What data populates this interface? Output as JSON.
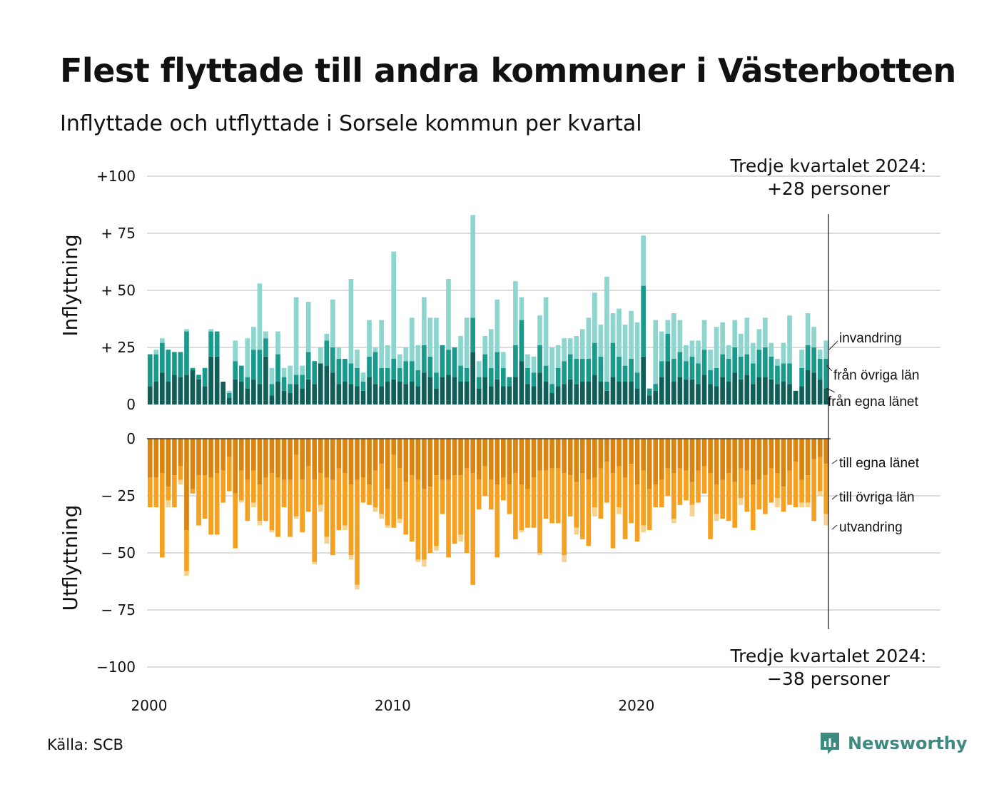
{
  "title": "Flest flyttade till andra kommuner i Västerbotten",
  "subtitle": "Inflyttade och utflyttade i Sorsele kommun per kvartal",
  "source": "Källa: SCB",
  "brand": "Newsworthy",
  "colors": {
    "in_lan": "#0f5f58",
    "in_ovriga": "#1a9a8c",
    "in_invandring": "#8dd6cf",
    "out_lan": "#d98510",
    "out_ovriga": "#f5a01e",
    "out_utvandring": "#f7d190",
    "brand": "#3d8a80"
  },
  "callouts": {
    "top_line1": "Tredje kvartalet 2024:",
    "top_line2": "+28 personer",
    "bottom_line1": "Tredje kvartalet 2024:",
    "bottom_line2": "−38 personer"
  },
  "chart_data": {
    "type": "bar",
    "stacked": true,
    "x_start": "2000-Q1",
    "x_ticks": [
      "2000",
      "2010",
      "2020"
    ],
    "grid": true,
    "panels": [
      {
        "name": "inflyttning",
        "ylabel": "Inflyttning",
        "ylim": [
          0,
          100
        ],
        "yticks": [
          "0",
          "+ 25",
          "+ 50",
          "+ 75",
          "+100"
        ],
        "series_labels": [
          "från egna länet",
          "från övriga län",
          "invandring"
        ],
        "series": [
          {
            "name": "från egna länet",
            "values": [
              8,
              10,
              14,
              10,
              13,
              12,
              13,
              15,
              11,
              8,
              21,
              21,
              10,
              3,
              11,
              10,
              7,
              11,
              9,
              21,
              4,
              10,
              6,
              5,
              9,
              7,
              11,
              9,
              18,
              17,
              14,
              9,
              10,
              9,
              8,
              6,
              12,
              9,
              8,
              10,
              11,
              10,
              9,
              10,
              8,
              14,
              12,
              7,
              12,
              13,
              12,
              10,
              10,
              23,
              7,
              12,
              8,
              11,
              8,
              8,
              12,
              19,
              9,
              8,
              14,
              10,
              5,
              8,
              9,
              11,
              9,
              10,
              10,
              13,
              10,
              6,
              12,
              10,
              10,
              10,
              7,
              21,
              4,
              6,
              12,
              19,
              10,
              12,
              11,
              11,
              9,
              13,
              9,
              8,
              12,
              10,
              14,
              11,
              13,
              9,
              12,
              12,
              11,
              9,
              10,
              9,
              6,
              8,
              15,
              14,
              11,
              7
            ]
          },
          {
            "name": "från övriga län",
            "values": [
              14,
              12,
              13,
              14,
              10,
              11,
              19,
              1,
              2,
              8,
              11,
              11,
              0,
              2,
              8,
              7,
              5,
              13,
              15,
              8,
              5,
              12,
              6,
              4,
              4,
              6,
              12,
              10,
              0,
              11,
              11,
              11,
              10,
              9,
              8,
              4,
              9,
              14,
              8,
              6,
              9,
              6,
              10,
              9,
              7,
              12,
              9,
              7,
              14,
              11,
              13,
              7,
              6,
              15,
              5,
              10,
              8,
              12,
              8,
              4,
              14,
              18,
              7,
              6,
              12,
              7,
              4,
              8,
              10,
              11,
              11,
              10,
              10,
              14,
              11,
              4,
              15,
              11,
              7,
              10,
              7,
              31,
              3,
              3,
              7,
              12,
              10,
              11,
              8,
              10,
              9,
              11,
              6,
              8,
              10,
              10,
              11,
              10,
              9,
              9,
              12,
              13,
              10,
              8,
              8,
              9,
              0,
              8,
              11,
              11,
              9,
              13
            ]
          },
          {
            "name": "invandring",
            "values": [
              0,
              2,
              2,
              0,
              0,
              0,
              1,
              0,
              0,
              0,
              1,
              0,
              0,
              1,
              9,
              0,
              17,
              10,
              29,
              3,
              7,
              10,
              4,
              8,
              34,
              4,
              22,
              0,
              7,
              3,
              21,
              5,
              0,
              37,
              8,
              4,
              16,
              2,
              21,
              10,
              47,
              6,
              6,
              19,
              11,
              21,
              17,
              24,
              0,
              31,
              0,
              13,
              22,
              45,
              7,
              8,
              17,
              23,
              7,
              0,
              28,
              10,
              6,
              7,
              13,
              30,
              16,
              10,
              10,
              7,
              10,
              13,
              18,
              22,
              14,
              46,
              13,
              21,
              18,
              21,
              22,
              22,
              0,
              28,
              13,
              6,
              20,
              14,
              7,
              7,
              10,
              13,
              9,
              18,
              14,
              6,
              12,
              10,
              16,
              9,
              9,
              13,
              6,
              3,
              9,
              21,
              0,
              8,
              14,
              9,
              4,
              8
            ]
          }
        ]
      },
      {
        "name": "utflyttning",
        "ylabel": "Utflyttning",
        "ylim": [
          -100,
          0
        ],
        "yticks": [
          "0",
          "− 25",
          "− 50",
          "− 75",
          "−100"
        ],
        "series_labels": [
          "till egna länet",
          "till övriga län",
          "utvandring"
        ],
        "series": [
          {
            "name": "till egna länet",
            "values": [
              -17,
              -17,
              -15,
              -21,
              -16,
              -12,
              -40,
              -22,
              -16,
              -16,
              -17,
              -15,
              -14,
              -8,
              -24,
              -14,
              -18,
              -14,
              -20,
              -17,
              -15,
              -17,
              -18,
              -18,
              -7,
              -18,
              -12,
              -18,
              -15,
              -17,
              -18,
              -13,
              -15,
              -20,
              -18,
              -17,
              -20,
              -14,
              -11,
              -22,
              -7,
              -13,
              -19,
              -16,
              -18,
              -22,
              -21,
              -16,
              -18,
              -18,
              -16,
              -16,
              -13,
              -15,
              -18,
              -12,
              -18,
              -20,
              -17,
              -20,
              -15,
              -20,
              -22,
              -17,
              -14,
              -14,
              -13,
              -13,
              -15,
              -16,
              -19,
              -15,
              -18,
              -17,
              -13,
              -10,
              -15,
              -12,
              -17,
              -11,
              -20,
              -14,
              -22,
              -20,
              -18,
              -13,
              -15,
              -13,
              -14,
              -19,
              -14,
              -12,
              -15,
              -20,
              -18,
              -15,
              -19,
              -13,
              -14,
              -20,
              -18,
              -16,
              -13,
              -15,
              -21,
              -14,
              -10,
              -18,
              -16,
              -9,
              -8,
              -11
            ]
          },
          {
            "name": "till övriga län",
            "values": [
              -13,
              -13,
              -37,
              -6,
              -14,
              -6,
              -18,
              -2,
              -22,
              -19,
              -25,
              -27,
              -14,
              -15,
              -24,
              -13,
              -18,
              -14,
              -16,
              -19,
              -25,
              -26,
              -12,
              -25,
              -27,
              -23,
              -20,
              -36,
              -14,
              -26,
              -33,
              -27,
              -23,
              -31,
              -46,
              -11,
              -9,
              -16,
              -22,
              -16,
              -32,
              -22,
              -23,
              -29,
              -35,
              -31,
              -29,
              -31,
              -15,
              -34,
              -30,
              -26,
              -37,
              -49,
              -13,
              -13,
              -13,
              -32,
              -10,
              -13,
              -29,
              -20,
              -17,
              -22,
              -36,
              -21,
              -24,
              -24,
              -36,
              -18,
              -20,
              -29,
              -29,
              -13,
              -22,
              -18,
              -33,
              -18,
              -27,
              -26,
              -25,
              -24,
              -18,
              -10,
              -12,
              -12,
              -20,
              -16,
              -13,
              -10,
              -14,
              -12,
              -29,
              -13,
              -17,
              -21,
              -20,
              -13,
              -18,
              -20,
              -13,
              -17,
              -15,
              -11,
              -11,
              -15,
              -20,
              -10,
              -12,
              -27,
              -15,
              -22
            ]
          },
          {
            "name": "utvandring",
            "values": [
              0,
              0,
              0,
              -3,
              0,
              -2,
              -2,
              0,
              0,
              0,
              0,
              0,
              0,
              0,
              0,
              -1,
              0,
              -2,
              -2,
              0,
              -1,
              0,
              0,
              0,
              -1,
              0,
              0,
              -1,
              -3,
              -3,
              0,
              0,
              -2,
              -2,
              -2,
              0,
              0,
              -2,
              -2,
              -1,
              0,
              -2,
              0,
              0,
              -1,
              -3,
              0,
              -2,
              0,
              0,
              0,
              -3,
              0,
              0,
              0,
              0,
              0,
              0,
              0,
              0,
              0,
              -1,
              0,
              0,
              -1,
              0,
              0,
              0,
              -3,
              0,
              -3,
              0,
              0,
              -4,
              0,
              0,
              0,
              -3,
              0,
              0,
              0,
              -3,
              0,
              0,
              0,
              0,
              -2,
              0,
              0,
              -5,
              0,
              0,
              0,
              -3,
              0,
              0,
              0,
              -3,
              0,
              0,
              0,
              0,
              0,
              -4,
              0,
              0,
              0,
              -2,
              -2,
              0,
              -2,
              -5
            ]
          }
        ]
      }
    ]
  }
}
